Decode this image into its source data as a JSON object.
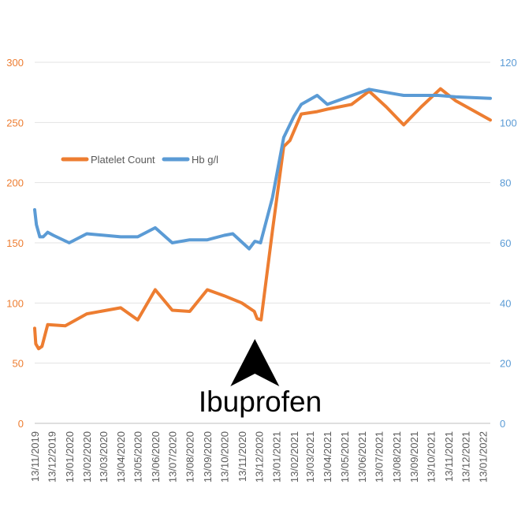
{
  "chart_data": {
    "type": "line",
    "title": "",
    "xlabel": "",
    "ylabel": "",
    "y2label": "",
    "ylim": [
      0,
      300
    ],
    "y2lim": [
      0,
      120
    ],
    "yticks": [
      0,
      50,
      100,
      150,
      200,
      250,
      300
    ],
    "y2ticks": [
      0,
      20,
      40,
      60,
      80,
      100,
      120
    ],
    "xlim": [
      "2019-11-13",
      "2022-01-26"
    ],
    "grid": true,
    "legend_position": "upper-left",
    "xtick_labels": [
      "13/11/2019",
      "13/12/2019",
      "13/01/2020",
      "13/02/2020",
      "13/03/2020",
      "13/04/2020",
      "13/05/2020",
      "13/06/2020",
      "13/07/2020",
      "13/08/2020",
      "13/09/2020",
      "13/10/2020",
      "13/11/2020",
      "13/12/2020",
      "13/01/2021",
      "13/02/2021",
      "13/03/2021",
      "13/04/2021",
      "13/05/2021",
      "13/06/2021",
      "13/07/2021",
      "13/08/2021",
      "13/09/2021",
      "13/10/2021",
      "13/11/2021",
      "13/12/2021",
      "13/01/2022"
    ],
    "xtick_dates": [
      "2019-11-13",
      "2019-12-13",
      "2020-01-13",
      "2020-02-13",
      "2020-03-13",
      "2020-04-13",
      "2020-05-13",
      "2020-06-13",
      "2020-07-13",
      "2020-08-13",
      "2020-09-13",
      "2020-10-13",
      "2020-11-13",
      "2020-12-13",
      "2021-01-13",
      "2021-02-13",
      "2021-03-13",
      "2021-04-13",
      "2021-05-13",
      "2021-06-13",
      "2021-07-13",
      "2021-08-13",
      "2021-09-13",
      "2021-10-13",
      "2021-11-13",
      "2021-12-13",
      "2022-01-13"
    ],
    "series": [
      {
        "name": "Platelet Count",
        "axis": "left",
        "color": "#ED7D31",
        "points": [
          [
            "2019-11-13",
            79
          ],
          [
            "2019-11-15",
            66
          ],
          [
            "2019-11-20",
            62
          ],
          [
            "2019-11-26",
            64
          ],
          [
            "2019-12-06",
            82
          ],
          [
            "2020-01-06",
            81
          ],
          [
            "2020-02-13",
            91
          ],
          [
            "2020-04-13",
            96
          ],
          [
            "2020-05-13",
            86
          ],
          [
            "2020-06-13",
            111
          ],
          [
            "2020-07-13",
            94
          ],
          [
            "2020-08-13",
            93
          ],
          [
            "2020-09-13",
            111
          ],
          [
            "2020-10-13",
            106
          ],
          [
            "2020-11-13",
            100
          ],
          [
            "2020-12-05",
            93
          ],
          [
            "2020-12-10",
            87
          ],
          [
            "2020-12-17",
            86
          ],
          [
            "2021-01-06",
            160
          ],
          [
            "2021-01-26",
            230
          ],
          [
            "2021-02-06",
            235
          ],
          [
            "2021-02-26",
            257
          ],
          [
            "2021-03-26",
            259
          ],
          [
            "2021-04-13",
            261
          ],
          [
            "2021-05-26",
            265
          ],
          [
            "2021-06-26",
            276
          ],
          [
            "2021-07-26",
            263
          ],
          [
            "2021-08-26",
            248
          ],
          [
            "2021-09-26",
            263
          ],
          [
            "2021-10-30",
            278
          ],
          [
            "2021-11-26",
            268
          ],
          [
            "2022-01-26",
            252
          ]
        ]
      },
      {
        "name": "Hb g/l",
        "axis": "right",
        "color": "#5B9BD5",
        "points": [
          [
            "2019-11-13",
            71
          ],
          [
            "2019-11-16",
            66
          ],
          [
            "2019-11-22",
            62
          ],
          [
            "2019-11-28",
            62
          ],
          [
            "2019-12-06",
            63.5
          ],
          [
            "2019-12-16",
            62.5
          ],
          [
            "2020-01-13",
            60
          ],
          [
            "2020-02-13",
            63
          ],
          [
            "2020-04-13",
            62
          ],
          [
            "2020-05-13",
            62
          ],
          [
            "2020-06-13",
            65
          ],
          [
            "2020-07-13",
            60
          ],
          [
            "2020-08-13",
            61
          ],
          [
            "2020-09-13",
            61
          ],
          [
            "2020-10-13",
            62.5
          ],
          [
            "2020-10-28",
            63
          ],
          [
            "2020-11-26",
            58
          ],
          [
            "2020-12-06",
            60.5
          ],
          [
            "2020-12-16",
            60
          ],
          [
            "2021-01-06",
            75
          ],
          [
            "2021-01-26",
            95
          ],
          [
            "2021-02-13",
            102
          ],
          [
            "2021-02-26",
            106
          ],
          [
            "2021-03-26",
            109
          ],
          [
            "2021-04-13",
            106
          ],
          [
            "2021-06-26",
            111
          ],
          [
            "2021-07-26",
            110
          ],
          [
            "2021-08-26",
            109
          ],
          [
            "2021-09-26",
            109
          ],
          [
            "2021-10-26",
            109
          ],
          [
            "2021-11-26",
            108.5
          ],
          [
            "2022-01-26",
            108
          ]
        ]
      }
    ],
    "annotations": [
      {
        "text": "Ibuprofen",
        "marker": "up-triangle",
        "x": "2020-12-06"
      }
    ]
  }
}
